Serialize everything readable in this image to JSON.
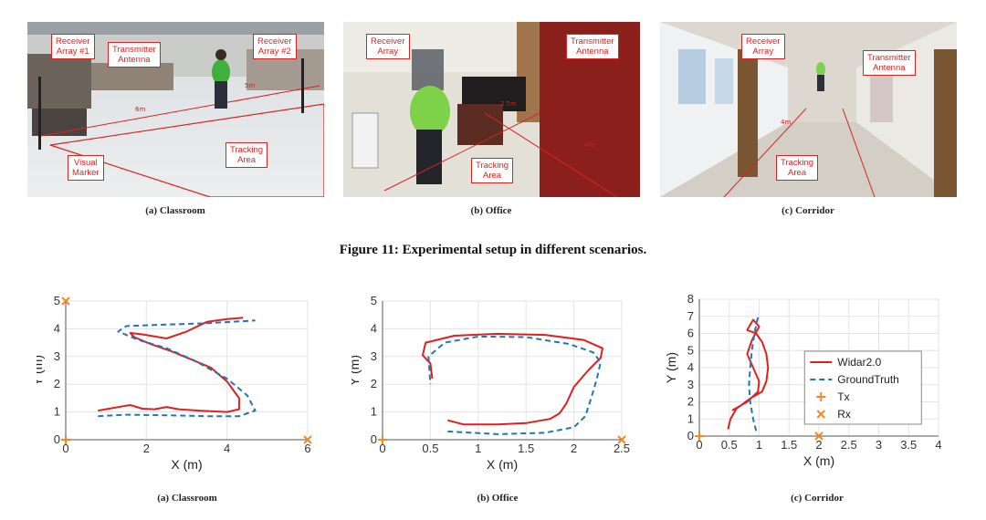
{
  "photos": [
    {
      "caption": "(a) Classroom",
      "labels": [
        {
          "id": "receiver-array-1",
          "text": "Receiver\nArray #1"
        },
        {
          "id": "transmitter-antenna",
          "text": "Transmitter\nAntenna"
        },
        {
          "id": "receiver-array-2",
          "text": "Receiver\nArray #2"
        },
        {
          "id": "visual-marker",
          "text": "Visual\nMarker"
        },
        {
          "id": "tracking-area",
          "text": "Tracking\nArea"
        }
      ],
      "measures": [
        "6m",
        "5m"
      ]
    },
    {
      "caption": "(b) Office",
      "labels": [
        {
          "id": "receiver-array",
          "text": "Receiver\nArray"
        },
        {
          "id": "transmitter-antenna",
          "text": "Transmitter\nAntenna"
        },
        {
          "id": "tracking-area",
          "text": "Tracking\nArea"
        }
      ],
      "measures": [
        "2.5m",
        "4m"
      ]
    },
    {
      "caption": "(c) Corridor",
      "labels": [
        {
          "id": "receiver-array",
          "text": "Receiver\nArray"
        },
        {
          "id": "transmitter-antenna",
          "text": "Transmitter\nAntenna"
        },
        {
          "id": "tracking-area",
          "text": "Tracking\nArea"
        }
      ],
      "measures": [
        "4m"
      ]
    }
  ],
  "figure_title": "Figure 11: Experimental setup in different scenarios.",
  "legend": {
    "widar": "Widar2.0",
    "ground": "GroundTruth",
    "tx": "Tx",
    "rx": "Rx"
  },
  "colors": {
    "widar": "#e02020",
    "ground": "#1f77b4",
    "marker": "#f08a24"
  },
  "chart_data": [
    {
      "type": "line",
      "caption": "(a) Classroom",
      "xlabel": "X (m)",
      "ylabel": "Y (m)",
      "xlim": [
        0,
        6
      ],
      "ylim": [
        0,
        5
      ],
      "xticks": [
        0,
        2,
        4,
        6
      ],
      "yticks": [
        0,
        1,
        2,
        3,
        4,
        5
      ],
      "grid": true,
      "series": [
        {
          "name": "Widar2.0",
          "style": "solid",
          "points": [
            [
              0.8,
              1.05
            ],
            [
              1.2,
              1.15
            ],
            [
              1.6,
              1.25
            ],
            [
              1.9,
              1.12
            ],
            [
              2.2,
              1.1
            ],
            [
              2.5,
              1.18
            ],
            [
              2.8,
              1.1
            ],
            [
              3.3,
              1.05
            ],
            [
              4.0,
              1.0
            ],
            [
              4.3,
              1.1
            ],
            [
              4.3,
              1.5
            ],
            [
              4.0,
              2.1
            ],
            [
              3.6,
              2.6
            ],
            [
              3.1,
              2.9
            ],
            [
              2.6,
              3.2
            ],
            [
              2.1,
              3.45
            ],
            [
              1.7,
              3.7
            ],
            [
              1.6,
              3.85
            ],
            [
              1.9,
              3.8
            ],
            [
              2.5,
              3.65
            ],
            [
              3.0,
              3.9
            ],
            [
              3.5,
              4.25
            ],
            [
              4.0,
              4.35
            ],
            [
              4.4,
              4.4
            ]
          ]
        },
        {
          "name": "GroundTruth",
          "style": "dashed",
          "points": [
            [
              0.8,
              0.85
            ],
            [
              1.5,
              0.9
            ],
            [
              2.5,
              0.88
            ],
            [
              3.5,
              0.85
            ],
            [
              4.3,
              0.85
            ],
            [
              4.7,
              1.05
            ],
            [
              4.5,
              1.6
            ],
            [
              4.0,
              2.2
            ],
            [
              3.2,
              2.85
            ],
            [
              2.5,
              3.3
            ],
            [
              1.8,
              3.6
            ],
            [
              1.3,
              3.9
            ],
            [
              1.5,
              4.1
            ],
            [
              2.5,
              4.15
            ],
            [
              3.5,
              4.2
            ],
            [
              4.7,
              4.3
            ]
          ]
        }
      ],
      "tx": [
        [
          0,
          0
        ]
      ],
      "rx": [
        [
          0,
          5
        ],
        [
          6,
          0
        ]
      ]
    },
    {
      "type": "line",
      "caption": "(b) Office",
      "xlabel": "X (m)",
      "ylabel": "Y (m)",
      "xlim": [
        0,
        2.5
      ],
      "ylim": [
        0,
        5
      ],
      "xticks": [
        0,
        0.5,
        1,
        1.5,
        2,
        2.5
      ],
      "yticks": [
        0,
        1,
        2,
        3,
        4,
        5
      ],
      "grid": true,
      "series": [
        {
          "name": "Widar2.0",
          "style": "solid",
          "points": [
            [
              0.68,
              0.7
            ],
            [
              0.85,
              0.55
            ],
            [
              1.2,
              0.55
            ],
            [
              1.5,
              0.6
            ],
            [
              1.75,
              0.75
            ],
            [
              1.85,
              0.95
            ],
            [
              1.92,
              1.3
            ],
            [
              2.0,
              1.9
            ],
            [
              2.15,
              2.5
            ],
            [
              2.28,
              2.95
            ],
            [
              2.3,
              3.3
            ],
            [
              2.1,
              3.6
            ],
            [
              1.7,
              3.78
            ],
            [
              1.2,
              3.82
            ],
            [
              0.75,
              3.75
            ],
            [
              0.45,
              3.5
            ],
            [
              0.42,
              3.05
            ],
            [
              0.5,
              2.75
            ],
            [
              0.52,
              2.2
            ]
          ]
        },
        {
          "name": "GroundTruth",
          "style": "dashed",
          "points": [
            [
              0.68,
              0.3
            ],
            [
              1.2,
              0.2
            ],
            [
              1.7,
              0.25
            ],
            [
              2.0,
              0.45
            ],
            [
              2.12,
              0.85
            ],
            [
              2.18,
              1.5
            ],
            [
              2.24,
              2.2
            ],
            [
              2.28,
              2.8
            ],
            [
              2.2,
              3.15
            ],
            [
              1.95,
              3.45
            ],
            [
              1.5,
              3.7
            ],
            [
              1.0,
              3.72
            ],
            [
              0.65,
              3.5
            ],
            [
              0.48,
              3.0
            ],
            [
              0.5,
              2.0
            ]
          ]
        }
      ],
      "tx": [
        [
          0,
          0
        ]
      ],
      "rx": [
        [
          2.5,
          0
        ]
      ]
    },
    {
      "type": "line",
      "caption": "(c) Corridor",
      "xlabel": "X (m)",
      "ylabel": "Y (m)",
      "xlim": [
        0,
        4
      ],
      "ylim": [
        0,
        8
      ],
      "xticks": [
        0,
        0.5,
        1,
        1.5,
        2,
        2.5,
        3,
        3.5,
        4
      ],
      "yticks": [
        0,
        1,
        2,
        3,
        4,
        5,
        6,
        7,
        8
      ],
      "grid": true,
      "legend_position": "right",
      "series": [
        {
          "name": "Widar2.0",
          "style": "solid",
          "points": [
            [
              0.48,
              0.4
            ],
            [
              0.52,
              1.0
            ],
            [
              0.62,
              1.6
            ],
            [
              0.85,
              2.2
            ],
            [
              1.05,
              2.6
            ],
            [
              1.12,
              3.2
            ],
            [
              1.15,
              4.0
            ],
            [
              1.12,
              4.8
            ],
            [
              1.05,
              5.5
            ],
            [
              0.95,
              6.0
            ],
            [
              0.8,
              6.2
            ],
            [
              0.9,
              6.8
            ],
            [
              1.0,
              6.4
            ],
            [
              0.88,
              5.6
            ],
            [
              0.8,
              4.8
            ],
            [
              0.9,
              4.0
            ],
            [
              1.0,
              3.2
            ],
            [
              0.98,
              2.6
            ],
            [
              0.8,
              2.0
            ],
            [
              0.55,
              1.5
            ]
          ]
        },
        {
          "name": "GroundTruth",
          "style": "dashed",
          "points": [
            [
              0.95,
              0.3
            ],
            [
              0.9,
              1.0
            ],
            [
              0.85,
              2.0
            ],
            [
              0.83,
              3.0
            ],
            [
              0.85,
              4.0
            ],
            [
              0.88,
              5.0
            ],
            [
              0.92,
              6.0
            ],
            [
              0.97,
              6.8
            ],
            [
              1.0,
              7.1
            ]
          ]
        }
      ],
      "tx": [
        [
          0,
          0
        ]
      ],
      "rx": [
        [
          2,
          0
        ]
      ]
    }
  ]
}
